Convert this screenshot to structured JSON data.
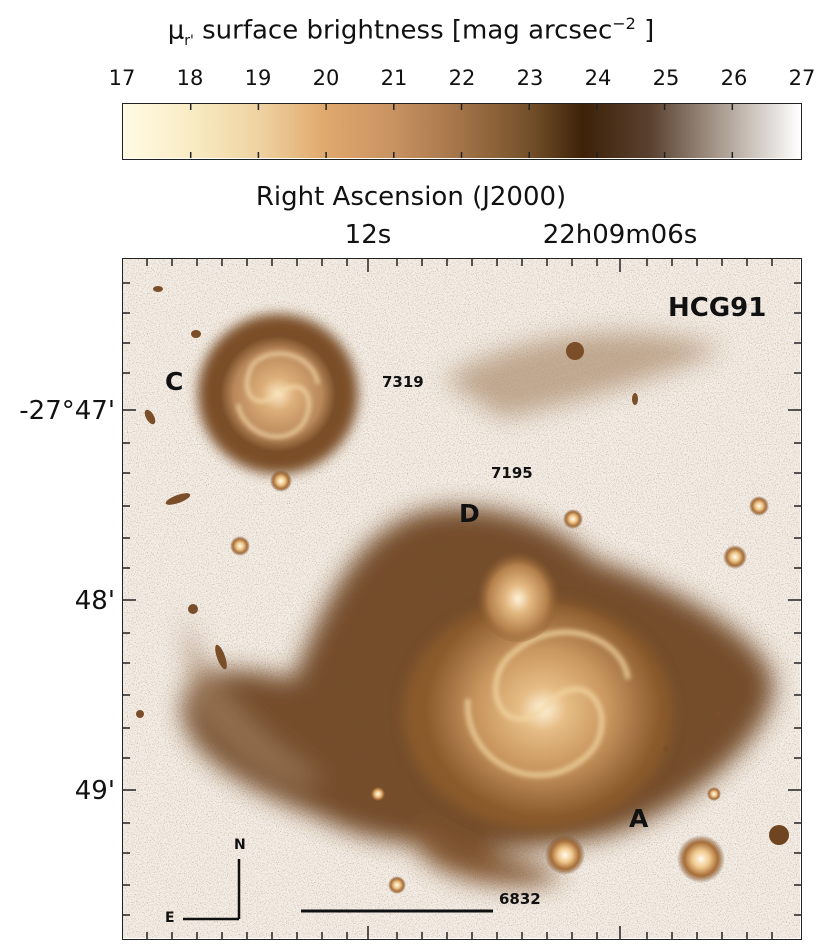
{
  "colorbar": {
    "title_symbol": "μ",
    "title_sub": "r'",
    "title_text": " surface brightness [mag arcsec",
    "title_sup": "−2",
    "title_end": " ]",
    "ticks": [
      "17",
      "18",
      "19",
      "20",
      "21",
      "22",
      "23",
      "24",
      "25",
      "26",
      "27"
    ],
    "range": [
      17,
      27
    ],
    "colors": [
      "#fffbe3",
      "#f7e6b8",
      "#ebc38e",
      "#d39a5c",
      "#b8804f",
      "#8c5c32",
      "#4b2d10",
      "#5c3f26",
      "#9c8878",
      "#d8d2cc",
      "#ffffff"
    ]
  },
  "axes": {
    "ra_title": "Right Ascension (J2000)",
    "ra_ticks": [
      "12s",
      "22h09m06s"
    ],
    "dec_ticks": [
      "-27°47'",
      "48'",
      "49'"
    ]
  },
  "image": {
    "group_name": "HCG91",
    "galaxy_labels": [
      "C",
      "D",
      "A"
    ],
    "ngc_numbers": [
      "7319",
      "7195",
      "6832"
    ],
    "compass_n": "N",
    "compass_e": "E",
    "colors": {
      "background": "#f3ede6",
      "halo": "#6e4520",
      "core": "#f6d9a8"
    }
  }
}
